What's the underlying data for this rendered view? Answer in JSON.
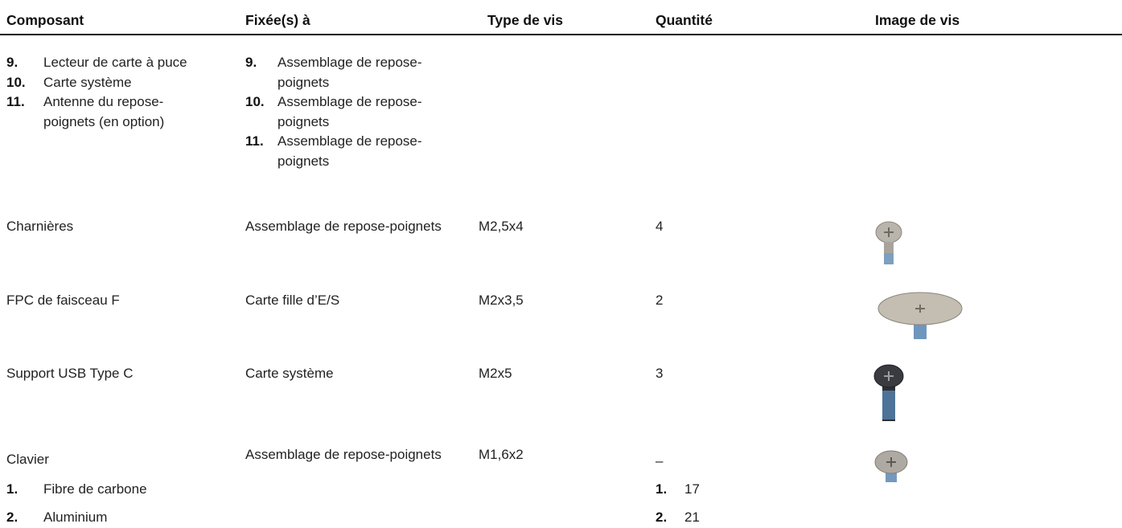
{
  "table": {
    "header": [
      "Composant",
      "Fixée(s) à",
      "Type de vis",
      "Quantité",
      "Image de vis"
    ],
    "rows": [
      {
        "composant": {
          "items": [
            {
              "n": "9.",
              "text": "Lecteur de carte à puce"
            },
            {
              "n": "10.",
              "text": "Carte système"
            },
            {
              "n": "11.",
              "text": "Antenne du repose-poignets (en option)"
            }
          ]
        },
        "fixee": {
          "items": [
            {
              "n": "9.",
              "text": "Assemblage de repose-poignets"
            },
            {
              "n": "10.",
              "text": "Assemblage de repose-poignets"
            },
            {
              "n": "11.",
              "text": "Assemblage de repose-poignets"
            }
          ]
        }
      },
      {
        "composant": "Charnières",
        "fixee": "Assemblage de repose-poignets",
        "type": "M2,5x4",
        "quantite": "4"
      },
      {
        "composant": "FPC de faisceau F",
        "fixee": "Carte fille d’E/S",
        "type": "M2x3,5",
        "quantite": "2"
      },
      {
        "composant": "Support USB Type C",
        "fixee": "Carte système",
        "type": "M2x5",
        "quantite": "3"
      },
      {
        "composant": {
          "text": "Clavier",
          "items": [
            {
              "n": "1.",
              "text": "Fibre de carbone"
            },
            {
              "n": "2.",
              "text": "Aluminium"
            }
          ]
        },
        "fixee": "Assemblage de repose-poignets",
        "type": "M1,6x2",
        "quantite": {
          "text": "–",
          "items": [
            {
              "n": "1.",
              "text": "17"
            },
            {
              "n": "2.",
              "text": "21"
            }
          ]
        }
      }
    ]
  }
}
